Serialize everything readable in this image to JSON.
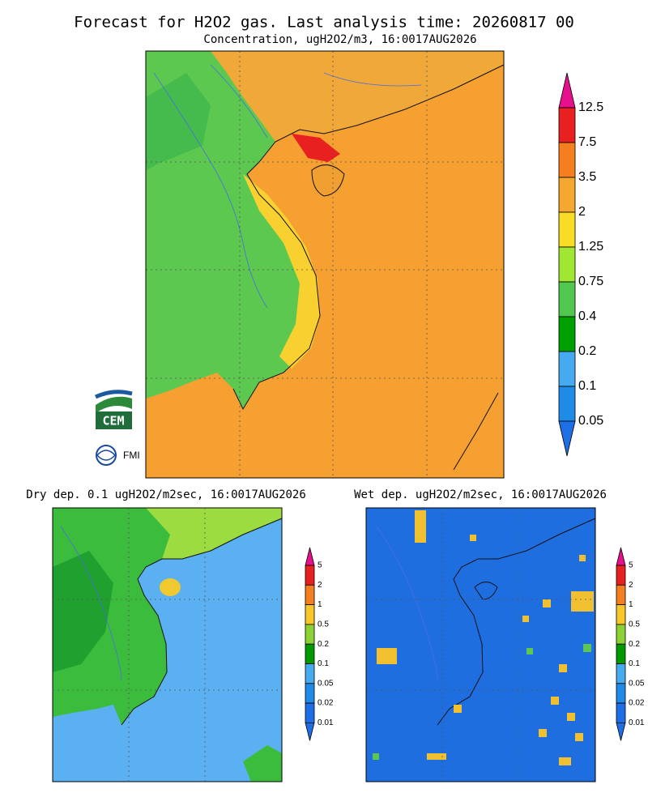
{
  "header": {
    "title": "Forecast for H2O2 gas. Last analysis time: 20260817 00",
    "subtitle": "Concentration, ugH2O2/m3, 16:0017AUG2026"
  },
  "main_colorbar": {
    "labels": [
      "12.5",
      "7.5",
      "3.5",
      "2",
      "1.25",
      "0.75",
      "0.4",
      "0.2",
      "0.1",
      "0.05"
    ]
  },
  "panels": [
    {
      "title": "Dry dep. 0.1 ugH2O2/m2sec, 16:0017AUG2026",
      "colorbar": {
        "labels": [
          "5",
          "2",
          "1",
          "0.5",
          "0.2",
          "0.1",
          "0.05",
          "0.02",
          "0.01"
        ]
      }
    },
    {
      "title": "Wet dep. ugH2O2/m2sec, 16:0017AUG2026",
      "colorbar": {
        "labels": [
          "5",
          "2",
          "1",
          "0.5",
          "0.2",
          "0.1",
          "0.05",
          "0.02",
          "0.01"
        ]
      }
    }
  ],
  "logos": {
    "cem": "CEM",
    "fmi": "FMI"
  }
}
